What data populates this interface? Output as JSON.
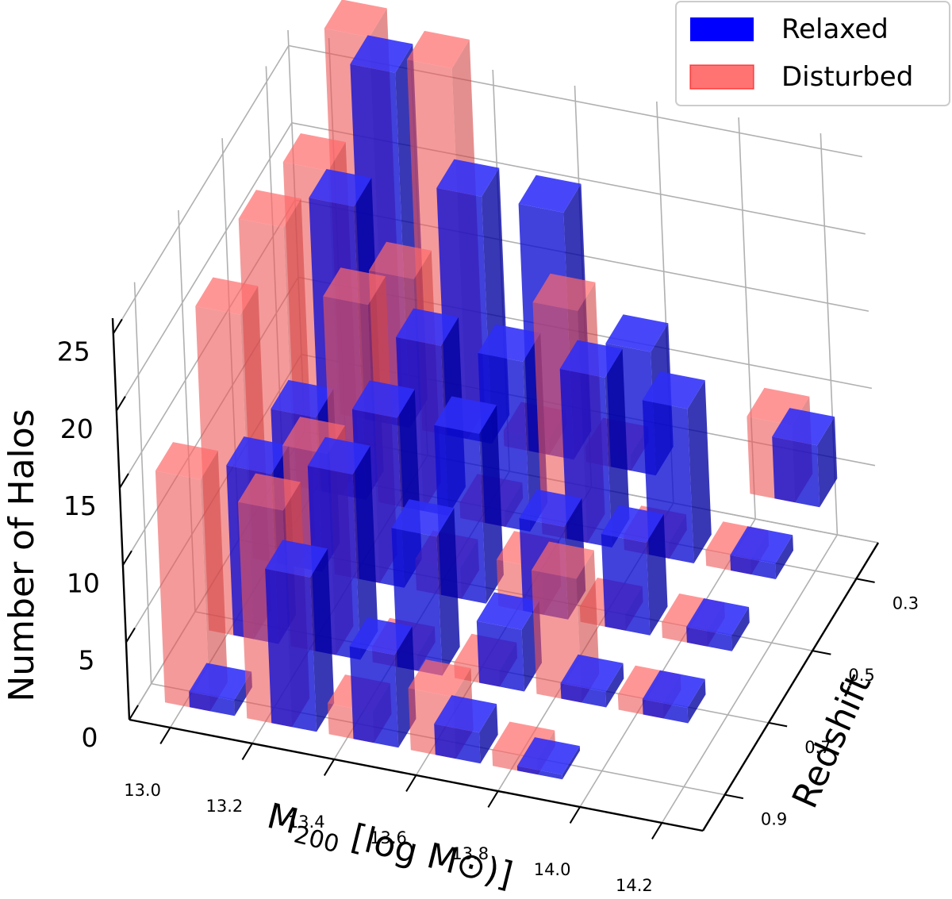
{
  "chart_data": {
    "type": "bar3d",
    "title": "",
    "xlabel_main": "M",
    "xlabel_sub": "200",
    "xlabel_rest": " [log M⊙)]",
    "ylabel": "Redshift",
    "zlabel": "Number of Halos",
    "x_ticks": [
      "13.0",
      "13.2",
      "13.4",
      "13.6",
      "13.8",
      "14.0",
      "14.2"
    ],
    "y_ticks": [
      "0.3",
      "0.5",
      "0.7",
      "0.9"
    ],
    "z_ticks": [
      "0",
      "5",
      "10",
      "15",
      "20",
      "25"
    ],
    "xlim": [
      12.9,
      14.3
    ],
    "ylim": [
      0.2,
      1.0
    ],
    "zlim": [
      0,
      26
    ],
    "legend_position": "top-right",
    "grid": true,
    "series": [
      {
        "name": "Relaxed",
        "color": "#0000ff",
        "points": [
          {
            "m": 13.05,
            "z": 0.9,
            "n": 1
          },
          {
            "m": 13.25,
            "z": 0.9,
            "n": 10
          },
          {
            "m": 13.45,
            "z": 0.9,
            "n": 6
          },
          {
            "m": 13.65,
            "z": 0.9,
            "n": 2
          },
          {
            "m": 13.85,
            "z": 0.9,
            "n": 0.3
          },
          {
            "m": 13.05,
            "z": 0.7,
            "n": 11
          },
          {
            "m": 13.25,
            "z": 0.7,
            "n": 12
          },
          {
            "m": 13.45,
            "z": 0.7,
            "n": 9
          },
          {
            "m": 13.65,
            "z": 0.7,
            "n": 4
          },
          {
            "m": 13.85,
            "z": 0.7,
            "n": 1
          },
          {
            "m": 14.05,
            "z": 0.7,
            "n": 1
          },
          {
            "m": 13.05,
            "z": 0.5,
            "n": 10
          },
          {
            "m": 13.25,
            "z": 0.5,
            "n": 11
          },
          {
            "m": 13.45,
            "z": 0.5,
            "n": 11
          },
          {
            "m": 13.65,
            "z": 0.5,
            "n": 6
          },
          {
            "m": 13.85,
            "z": 0.5,
            "n": 6
          },
          {
            "m": 14.05,
            "z": 0.5,
            "n": 1
          },
          {
            "m": 13.05,
            "z": 0.3,
            "n": 19
          },
          {
            "m": 13.25,
            "z": 0.3,
            "n": 11
          },
          {
            "m": 13.45,
            "z": 0.3,
            "n": 11
          },
          {
            "m": 13.65,
            "z": 0.3,
            "n": 11
          },
          {
            "m": 13.85,
            "z": 0.3,
            "n": 10
          },
          {
            "m": 14.05,
            "z": 0.3,
            "n": 1
          },
          {
            "m": 13.05,
            "z": 0.1,
            "n": 23
          },
          {
            "m": 13.25,
            "z": 0.1,
            "n": 16
          },
          {
            "m": 13.45,
            "z": 0.1,
            "n": 16
          },
          {
            "m": 13.65,
            "z": 0.1,
            "n": 8
          },
          {
            "m": 14.05,
            "z": 0.1,
            "n": 4
          }
        ]
      },
      {
        "name": "Disturbed",
        "color": "#ff0000",
        "points": [
          {
            "m": 13.05,
            "z": 0.9,
            "n": 15
          },
          {
            "m": 13.25,
            "z": 0.9,
            "n": 14
          },
          {
            "m": 13.45,
            "z": 0.9,
            "n": 2
          },
          {
            "m": 13.65,
            "z": 0.9,
            "n": 4
          },
          {
            "m": 13.85,
            "z": 0.9,
            "n": 1
          },
          {
            "m": 13.05,
            "z": 0.7,
            "n": 21
          },
          {
            "m": 13.25,
            "z": 0.7,
            "n": 13
          },
          {
            "m": 13.45,
            "z": 0.7,
            "n": 1
          },
          {
            "m": 13.65,
            "z": 0.7,
            "n": 1
          },
          {
            "m": 13.85,
            "z": 0.7,
            "n": 8
          },
          {
            "m": 14.05,
            "z": 0.7,
            "n": 1
          },
          {
            "m": 13.05,
            "z": 0.5,
            "n": 22
          },
          {
            "m": 13.25,
            "z": 0.5,
            "n": 18
          },
          {
            "m": 13.45,
            "z": 0.5,
            "n": 2
          },
          {
            "m": 13.65,
            "z": 0.5,
            "n": 3
          },
          {
            "m": 13.85,
            "z": 0.5,
            "n": 1
          },
          {
            "m": 14.05,
            "z": 0.5,
            "n": 1
          },
          {
            "m": 13.05,
            "z": 0.3,
            "n": 21
          },
          {
            "m": 13.25,
            "z": 0.3,
            "n": 15
          },
          {
            "m": 13.45,
            "z": 0.3,
            "n": 1
          },
          {
            "m": 13.65,
            "z": 0.3,
            "n": 15
          },
          {
            "m": 13.85,
            "z": 0.3,
            "n": 1
          },
          {
            "m": 14.05,
            "z": 0.3,
            "n": 1
          },
          {
            "m": 13.05,
            "z": 0.1,
            "n": 25
          },
          {
            "m": 13.25,
            "z": 0.1,
            "n": 24
          },
          {
            "m": 13.45,
            "z": 0.1,
            "n": 1
          },
          {
            "m": 13.65,
            "z": 0.1,
            "n": 1
          },
          {
            "m": 14.05,
            "z": 0.1,
            "n": 5
          }
        ]
      }
    ]
  }
}
